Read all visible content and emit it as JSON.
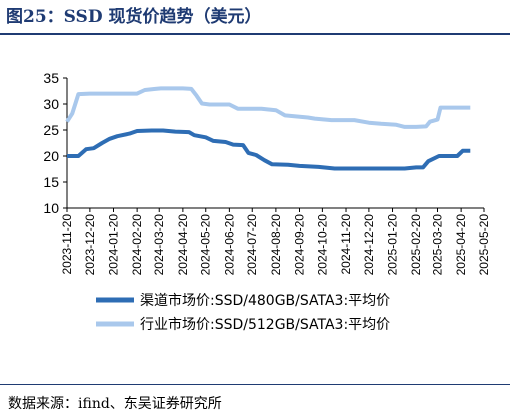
{
  "title": "图25：SSD 现货价趋势（美元）",
  "source": "数据来源：ifind、东吴证券研究所",
  "chart_data": {
    "type": "line",
    "ylim": [
      10,
      35
    ],
    "yticks": [
      10,
      15,
      20,
      25,
      30,
      35
    ],
    "grid": false,
    "legend_position": "bottom",
    "x_tick_labels": [
      "2023-11-20",
      "2023-12-20",
      "2024-01-20",
      "2024-02-20",
      "2024-03-20",
      "2024-04-20",
      "2024-05-20",
      "2024-06-20",
      "2024-07-20",
      "2024-08-20",
      "2024-09-20",
      "2024-10-20",
      "2024-11-20",
      "2024-12-20",
      "2025-01-20",
      "2025-02-20",
      "2025-03-20",
      "2025-04-20",
      "2025-05-20"
    ],
    "series": [
      {
        "name": "渠道市场价:SSD/480GB/SATA3:平均价",
        "color": "#2e6db4",
        "points": [
          [
            "2023-11-20",
            20
          ],
          [
            "2023-12-05",
            20
          ],
          [
            "2023-12-15",
            21.3
          ],
          [
            "2023-12-25",
            21.5
          ],
          [
            "2024-01-05",
            22.5
          ],
          [
            "2024-01-15",
            23.3
          ],
          [
            "2024-01-25",
            23.8
          ],
          [
            "2024-02-10",
            24.3
          ],
          [
            "2024-02-20",
            24.8
          ],
          [
            "2024-03-10",
            24.9
          ],
          [
            "2024-03-25",
            24.9
          ],
          [
            "2024-04-10",
            24.7
          ],
          [
            "2024-04-28",
            24.6
          ],
          [
            "2024-05-05",
            24.0
          ],
          [
            "2024-05-20",
            23.6
          ],
          [
            "2024-05-30",
            22.9
          ],
          [
            "2024-06-15",
            22.7
          ],
          [
            "2024-06-25",
            22.2
          ],
          [
            "2024-07-08",
            22.1
          ],
          [
            "2024-07-15",
            20.6
          ],
          [
            "2024-07-25",
            20.2
          ],
          [
            "2024-08-05",
            19.2
          ],
          [
            "2024-08-15",
            18.4
          ],
          [
            "2024-09-05",
            18.3
          ],
          [
            "2024-09-20",
            18.1
          ],
          [
            "2024-10-15",
            17.9
          ],
          [
            "2024-11-05",
            17.6
          ],
          [
            "2024-12-10",
            17.6
          ],
          [
            "2025-01-20",
            17.6
          ],
          [
            "2025-02-05",
            17.6
          ],
          [
            "2025-02-20",
            17.8
          ],
          [
            "2025-03-01",
            17.8
          ],
          [
            "2025-03-08",
            19.0
          ],
          [
            "2025-03-22",
            20.0
          ],
          [
            "2025-04-15",
            20.0
          ],
          [
            "2025-04-22",
            21.0
          ],
          [
            "2025-05-02",
            21.0
          ]
        ]
      },
      {
        "name": "行业市场价:SSD/512GB/SATA3:平均价",
        "color": "#a9c8ec",
        "points": [
          [
            "2023-11-20",
            26.6
          ],
          [
            "2023-11-27",
            28.2
          ],
          [
            "2023-12-05",
            31.9
          ],
          [
            "2023-12-20",
            32.0
          ],
          [
            "2024-01-20",
            32.0
          ],
          [
            "2024-02-20",
            32.0
          ],
          [
            "2024-03-01",
            32.7
          ],
          [
            "2024-03-15",
            32.9
          ],
          [
            "2024-03-22",
            33.0
          ],
          [
            "2024-04-20",
            33.0
          ],
          [
            "2024-05-01",
            32.9
          ],
          [
            "2024-05-08",
            31.6
          ],
          [
            "2024-05-15",
            30.1
          ],
          [
            "2024-05-25",
            29.9
          ],
          [
            "2024-06-20",
            29.9
          ],
          [
            "2024-07-01",
            29.1
          ],
          [
            "2024-08-01",
            29.1
          ],
          [
            "2024-08-20",
            28.8
          ],
          [
            "2024-09-01",
            27.8
          ],
          [
            "2024-10-01",
            27.4
          ],
          [
            "2024-10-10",
            27.2
          ],
          [
            "2024-11-01",
            26.9
          ],
          [
            "2024-12-01",
            26.9
          ],
          [
            "2024-12-20",
            26.4
          ],
          [
            "2025-01-05",
            26.2
          ],
          [
            "2025-01-25",
            26.0
          ],
          [
            "2025-02-05",
            25.6
          ],
          [
            "2025-02-20",
            25.6
          ],
          [
            "2025-03-05",
            25.7
          ],
          [
            "2025-03-10",
            26.6
          ],
          [
            "2025-03-20",
            27.0
          ],
          [
            "2025-03-24",
            29.3
          ],
          [
            "2025-04-20",
            29.3
          ],
          [
            "2025-05-02",
            29.3
          ]
        ]
      }
    ]
  }
}
